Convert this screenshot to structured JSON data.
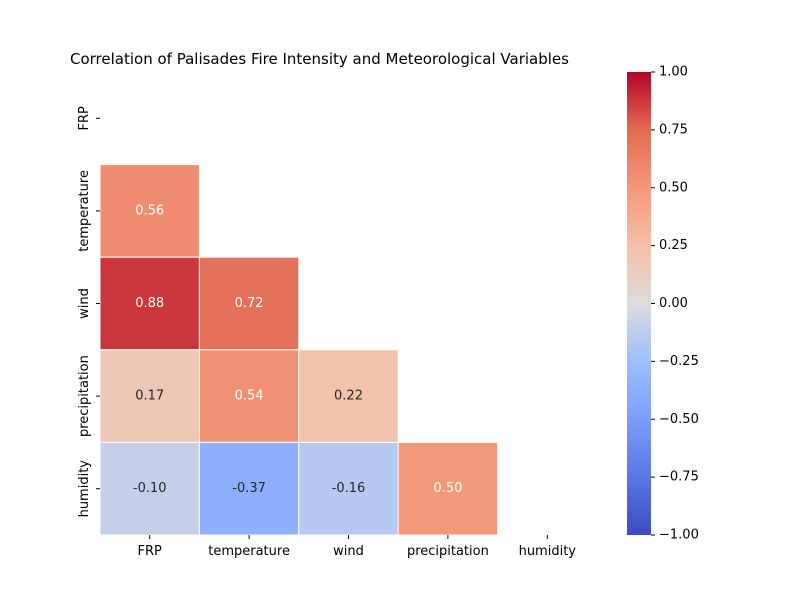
{
  "chart_data": {
    "type": "heatmap",
    "title": "Correlation of Palisades Fire Intensity and Meteorological Variables",
    "variables": [
      "FRP",
      "temperature",
      "wind",
      "precipitation",
      "humidity"
    ],
    "mask": "upper-triangle-including-diagonal",
    "values": [
      [
        null,
        null,
        null,
        null,
        null
      ],
      [
        0.56,
        null,
        null,
        null,
        null
      ],
      [
        0.88,
        0.72,
        null,
        null,
        null
      ],
      [
        0.17,
        0.54,
        0.22,
        null,
        null
      ],
      [
        -0.1,
        -0.37,
        -0.16,
        0.5,
        null
      ]
    ],
    "value_labels": [
      [
        null,
        null,
        null,
        null,
        null
      ],
      [
        "0.56",
        null,
        null,
        null,
        null
      ],
      [
        "0.88",
        "0.72",
        null,
        null,
        null
      ],
      [
        "0.17",
        "0.54",
        "0.22",
        null,
        null
      ],
      [
        "-0.10",
        "-0.37",
        "-0.16",
        "0.50",
        null
      ]
    ],
    "colormap": "coolwarm",
    "vmin": -1.0,
    "vmax": 1.0,
    "colorbar_ticks": [
      "1.00",
      "0.75",
      "0.50",
      "0.25",
      "0.00",
      "−0.25",
      "−0.50",
      "−0.75",
      "−1.00"
    ],
    "colorbar_tick_values": [
      1.0,
      0.75,
      0.5,
      0.25,
      0.0,
      -0.25,
      -0.5,
      -0.75,
      -1.0
    ],
    "cell_border_color": "#ffffff"
  }
}
